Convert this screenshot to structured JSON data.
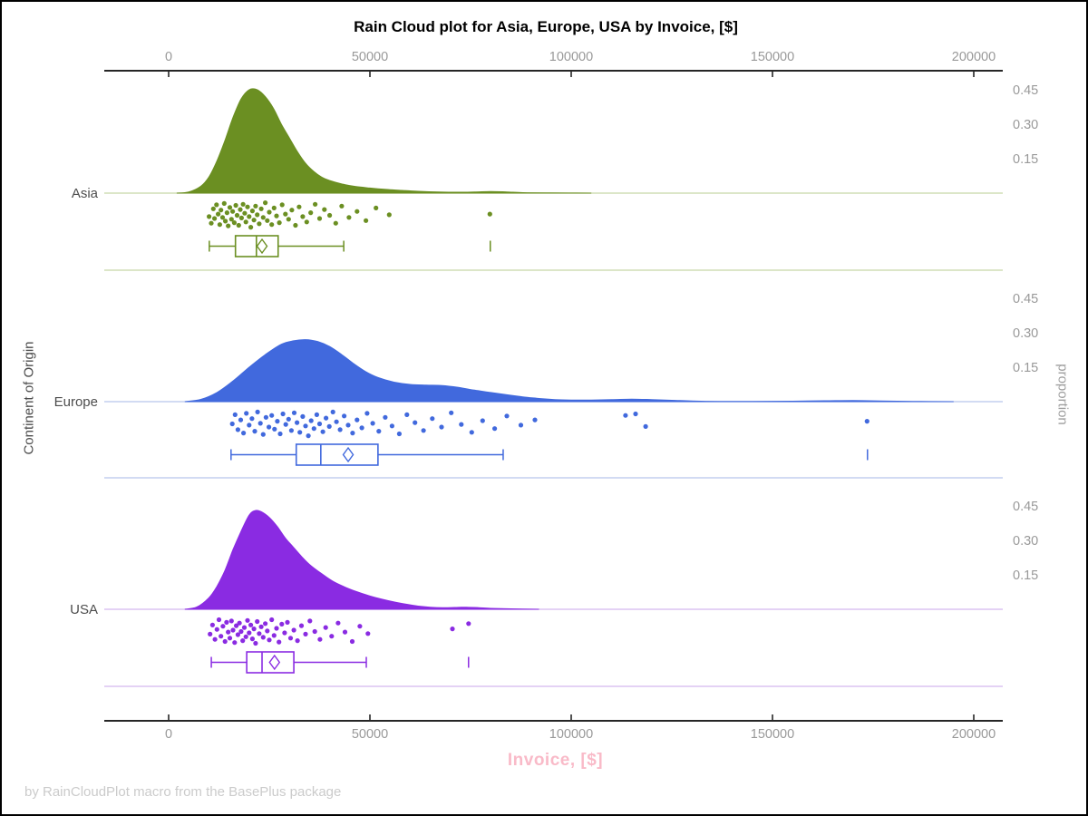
{
  "chart_data": {
    "type": "raincloud",
    "title": "Rain Cloud plot for Asia, Europe, USA by Invoice, [$]",
    "xlabel": "Invoice, [$]",
    "ylabel": "Continent of Origin",
    "y2label": "proportion",
    "footnote": "by RainCloudPlot macro from the BasePlus package",
    "x_ticks": [
      0,
      50000,
      100000,
      150000,
      200000
    ],
    "x_range": [
      -16000,
      207000
    ],
    "proportion_ticks": [
      0.15,
      0.3,
      0.45
    ],
    "categories": [
      "Asia",
      "Europe",
      "USA"
    ],
    "colors": {
      "xlabel_pink": "#F9BAC8",
      "footnote_gray": "#CBCBCB",
      "tick_gray": "#999999",
      "axis_black": "#262626",
      "category_label": "#4D4D4D"
    },
    "series": [
      {
        "name": "Asia",
        "color": "#6B8F22",
        "light": "#C8D6A6",
        "density": [
          [
            2000,
            0
          ],
          [
            5000,
            0.005
          ],
          [
            8000,
            0.03
          ],
          [
            10000,
            0.07
          ],
          [
            12000,
            0.14
          ],
          [
            14000,
            0.23
          ],
          [
            16000,
            0.33
          ],
          [
            18000,
            0.41
          ],
          [
            20000,
            0.45
          ],
          [
            22000,
            0.45
          ],
          [
            24000,
            0.42
          ],
          [
            26000,
            0.37
          ],
          [
            28000,
            0.3
          ],
          [
            30000,
            0.24
          ],
          [
            32000,
            0.18
          ],
          [
            34000,
            0.13
          ],
          [
            36000,
            0.095
          ],
          [
            38000,
            0.07
          ],
          [
            40000,
            0.055
          ],
          [
            43000,
            0.04
          ],
          [
            46000,
            0.03
          ],
          [
            50000,
            0.022
          ],
          [
            54000,
            0.016
          ],
          [
            58000,
            0.012
          ],
          [
            62000,
            0.008
          ],
          [
            67000,
            0.005
          ],
          [
            72000,
            0.004
          ],
          [
            76000,
            0.005
          ],
          [
            80000,
            0.007
          ],
          [
            84000,
            0.005
          ],
          [
            88000,
            0.002
          ],
          [
            95000,
            0.001
          ],
          [
            105000,
            0
          ]
        ],
        "box": {
          "whisker_low": 10100,
          "q1": 16600,
          "median": 21800,
          "mean": 23200,
          "q3": 27200,
          "whisker_high": 43500,
          "outliers": [
            79900
          ]
        },
        "points": [
          [
            10042,
            0.55
          ],
          [
            10580,
            0.8
          ],
          [
            11100,
            0.25
          ],
          [
            11400,
            0.62
          ],
          [
            11900,
            0.1
          ],
          [
            12300,
            0.45
          ],
          [
            12700,
            0.85
          ],
          [
            13000,
            0.3
          ],
          [
            13400,
            0.58
          ],
          [
            13800,
            0.05
          ],
          [
            14100,
            0.72
          ],
          [
            14500,
            0.4
          ],
          [
            14800,
            0.9
          ],
          [
            15200,
            0.2
          ],
          [
            15600,
            0.65
          ],
          [
            15900,
            0.35
          ],
          [
            16300,
            0.78
          ],
          [
            16700,
            0.12
          ],
          [
            17000,
            0.5
          ],
          [
            17400,
            0.88
          ],
          [
            17800,
            0.28
          ],
          [
            18100,
            0.6
          ],
          [
            18500,
            0.08
          ],
          [
            18900,
            0.42
          ],
          [
            19200,
            0.75
          ],
          [
            19600,
            0.18
          ],
          [
            20000,
            0.55
          ],
          [
            20400,
            0.95
          ],
          [
            20800,
            0.33
          ],
          [
            21200,
            0.68
          ],
          [
            21600,
            0.15
          ],
          [
            22000,
            0.48
          ],
          [
            22500,
            0.82
          ],
          [
            23000,
            0.25
          ],
          [
            23500,
            0.58
          ],
          [
            24000,
            0.02
          ],
          [
            24500,
            0.7
          ],
          [
            25000,
            0.38
          ],
          [
            25600,
            0.85
          ],
          [
            26200,
            0.22
          ],
          [
            26800,
            0.52
          ],
          [
            27500,
            0.78
          ],
          [
            28200,
            0.1
          ],
          [
            29000,
            0.45
          ],
          [
            29800,
            0.65
          ],
          [
            30600,
            0.3
          ],
          [
            31500,
            0.88
          ],
          [
            32400,
            0.18
          ],
          [
            33300,
            0.55
          ],
          [
            34300,
            0.75
          ],
          [
            35300,
            0.4
          ],
          [
            36400,
            0.08
          ],
          [
            37500,
            0.62
          ],
          [
            38700,
            0.28
          ],
          [
            40000,
            0.5
          ],
          [
            41500,
            0.8
          ],
          [
            43000,
            0.15
          ],
          [
            44800,
            0.58
          ],
          [
            46800,
            0.35
          ],
          [
            49000,
            0.7
          ],
          [
            51500,
            0.22
          ],
          [
            54800,
            0.48
          ],
          [
            79800,
            0.45
          ]
        ]
      },
      {
        "name": "Europe",
        "color": "#4169DD",
        "light": "#B7C5EC",
        "density": [
          [
            4000,
            0
          ],
          [
            8000,
            0.01
          ],
          [
            12000,
            0.04
          ],
          [
            16000,
            0.09
          ],
          [
            20000,
            0.15
          ],
          [
            24000,
            0.205
          ],
          [
            28000,
            0.25
          ],
          [
            31000,
            0.265
          ],
          [
            34000,
            0.27
          ],
          [
            37000,
            0.262
          ],
          [
            40000,
            0.24
          ],
          [
            43000,
            0.205
          ],
          [
            46000,
            0.165
          ],
          [
            49000,
            0.13
          ],
          [
            52000,
            0.105
          ],
          [
            56000,
            0.085
          ],
          [
            60000,
            0.075
          ],
          [
            64000,
            0.072
          ],
          [
            68000,
            0.07
          ],
          [
            72000,
            0.062
          ],
          [
            76000,
            0.05
          ],
          [
            80000,
            0.04
          ],
          [
            84000,
            0.03
          ],
          [
            88000,
            0.021
          ],
          [
            92000,
            0.014
          ],
          [
            96000,
            0.009
          ],
          [
            100000,
            0.007
          ],
          [
            105000,
            0.007
          ],
          [
            110000,
            0.009
          ],
          [
            115000,
            0.011
          ],
          [
            120000,
            0.009
          ],
          [
            125000,
            0.006
          ],
          [
            130000,
            0.003
          ],
          [
            137000,
            0.001
          ],
          [
            145000,
            0.001
          ],
          [
            155000,
            0.002
          ],
          [
            163000,
            0.004
          ],
          [
            170000,
            0.005
          ],
          [
            177000,
            0.003
          ],
          [
            185000,
            0.001
          ],
          [
            195000,
            0
          ]
        ],
        "box": {
          "whisker_low": 15500,
          "q1": 31700,
          "median": 37800,
          "mean": 44600,
          "q3": 52000,
          "whisker_high": 83100,
          "outliers": [
            173600
          ]
        },
        "points": [
          [
            15800,
            0.5
          ],
          [
            16500,
            0.15
          ],
          [
            17200,
            0.72
          ],
          [
            17900,
            0.35
          ],
          [
            18600,
            0.85
          ],
          [
            19300,
            0.1
          ],
          [
            20000,
            0.55
          ],
          [
            20700,
            0.3
          ],
          [
            21400,
            0.78
          ],
          [
            22100,
            0.05
          ],
          [
            22800,
            0.48
          ],
          [
            23500,
            0.9
          ],
          [
            24200,
            0.25
          ],
          [
            24900,
            0.62
          ],
          [
            25600,
            0.18
          ],
          [
            26300,
            0.7
          ],
          [
            27000,
            0.4
          ],
          [
            27700,
            0.88
          ],
          [
            28400,
            0.12
          ],
          [
            29100,
            0.52
          ],
          [
            29800,
            0.32
          ],
          [
            30500,
            0.75
          ],
          [
            31200,
            0.08
          ],
          [
            31900,
            0.45
          ],
          [
            32600,
            0.82
          ],
          [
            33300,
            0.22
          ],
          [
            34000,
            0.58
          ],
          [
            34700,
            0.95
          ],
          [
            35400,
            0.38
          ],
          [
            36100,
            0.68
          ],
          [
            36800,
            0.15
          ],
          [
            37500,
            0.5
          ],
          [
            38300,
            0.8
          ],
          [
            39100,
            0.28
          ],
          [
            39900,
            0.6
          ],
          [
            40800,
            0.05
          ],
          [
            41700,
            0.42
          ],
          [
            42600,
            0.72
          ],
          [
            43600,
            0.2
          ],
          [
            44600,
            0.55
          ],
          [
            45700,
            0.85
          ],
          [
            46800,
            0.35
          ],
          [
            48000,
            0.65
          ],
          [
            49300,
            0.1
          ],
          [
            50700,
            0.48
          ],
          [
            52200,
            0.78
          ],
          [
            53800,
            0.25
          ],
          [
            55500,
            0.58
          ],
          [
            57300,
            0.88
          ],
          [
            59200,
            0.15
          ],
          [
            61200,
            0.45
          ],
          [
            63300,
            0.75
          ],
          [
            65500,
            0.3
          ],
          [
            67800,
            0.62
          ],
          [
            70200,
            0.08
          ],
          [
            72700,
            0.52
          ],
          [
            75300,
            0.82
          ],
          [
            78000,
            0.38
          ],
          [
            81000,
            0.68
          ],
          [
            84000,
            0.2
          ],
          [
            87500,
            0.55
          ],
          [
            91000,
            0.35
          ],
          [
            113500,
            0.18
          ],
          [
            116000,
            0.12
          ],
          [
            118500,
            0.6
          ],
          [
            173500,
            0.4
          ]
        ]
      },
      {
        "name": "USA",
        "color": "#8A2BE2",
        "light": "#D3B6EF",
        "density": [
          [
            4000,
            0
          ],
          [
            7000,
            0.01
          ],
          [
            10000,
            0.05
          ],
          [
            12000,
            0.1
          ],
          [
            14000,
            0.17
          ],
          [
            16000,
            0.26
          ],
          [
            18000,
            0.34
          ],
          [
            20000,
            0.41
          ],
          [
            21500,
            0.43
          ],
          [
            23000,
            0.425
          ],
          [
            25000,
            0.4
          ],
          [
            27000,
            0.36
          ],
          [
            29000,
            0.31
          ],
          [
            31000,
            0.27
          ],
          [
            33000,
            0.23
          ],
          [
            35000,
            0.195
          ],
          [
            38000,
            0.155
          ],
          [
            41000,
            0.12
          ],
          [
            44000,
            0.095
          ],
          [
            47000,
            0.075
          ],
          [
            50000,
            0.058
          ],
          [
            53000,
            0.044
          ],
          [
            56000,
            0.032
          ],
          [
            59000,
            0.022
          ],
          [
            62000,
            0.014
          ],
          [
            65000,
            0.009
          ],
          [
            68000,
            0.007
          ],
          [
            71000,
            0.008
          ],
          [
            74000,
            0.009
          ],
          [
            77000,
            0.007
          ],
          [
            80000,
            0.004
          ],
          [
            85000,
            0.002
          ],
          [
            92000,
            0
          ]
        ],
        "box": {
          "whisker_low": 10600,
          "q1": 19400,
          "median": 23200,
          "mean": 26300,
          "q3": 31100,
          "whisker_high": 49100,
          "outliers": [
            74500
          ]
        },
        "points": [
          [
            10300,
            0.6
          ],
          [
            10900,
            0.25
          ],
          [
            11500,
            0.8
          ],
          [
            12000,
            0.42
          ],
          [
            12500,
            0.05
          ],
          [
            13000,
            0.68
          ],
          [
            13500,
            0.3
          ],
          [
            14000,
            0.88
          ],
          [
            14400,
            0.15
          ],
          [
            14800,
            0.52
          ],
          [
            15200,
            0.75
          ],
          [
            15600,
            0.1
          ],
          [
            16000,
            0.45
          ],
          [
            16400,
            0.92
          ],
          [
            16800,
            0.28
          ],
          [
            17200,
            0.62
          ],
          [
            17600,
            0.18
          ],
          [
            18000,
            0.5
          ],
          [
            18400,
            0.85
          ],
          [
            18800,
            0.35
          ],
          [
            19200,
            0.7
          ],
          [
            19600,
            0.08
          ],
          [
            20000,
            0.55
          ],
          [
            20400,
            0.25
          ],
          [
            20800,
            0.78
          ],
          [
            21200,
            0.4
          ],
          [
            21600,
            0.95
          ],
          [
            22000,
            0.12
          ],
          [
            22500,
            0.58
          ],
          [
            23000,
            0.32
          ],
          [
            23500,
            0.72
          ],
          [
            24000,
            0.2
          ],
          [
            24500,
            0.48
          ],
          [
            25000,
            0.82
          ],
          [
            25600,
            0.05
          ],
          [
            26200,
            0.65
          ],
          [
            26800,
            0.38
          ],
          [
            27400,
            0.9
          ],
          [
            28100,
            0.22
          ],
          [
            28800,
            0.55
          ],
          [
            29500,
            0.15
          ],
          [
            30300,
            0.75
          ],
          [
            31100,
            0.45
          ],
          [
            32000,
            0.85
          ],
          [
            33000,
            0.28
          ],
          [
            34000,
            0.6
          ],
          [
            35100,
            0.1
          ],
          [
            36300,
            0.5
          ],
          [
            37600,
            0.8
          ],
          [
            39000,
            0.35
          ],
          [
            40500,
            0.68
          ],
          [
            42100,
            0.18
          ],
          [
            43800,
            0.52
          ],
          [
            45600,
            0.88
          ],
          [
            47500,
            0.3
          ],
          [
            49500,
            0.58
          ],
          [
            70500,
            0.4
          ],
          [
            74500,
            0.2
          ]
        ]
      }
    ]
  }
}
